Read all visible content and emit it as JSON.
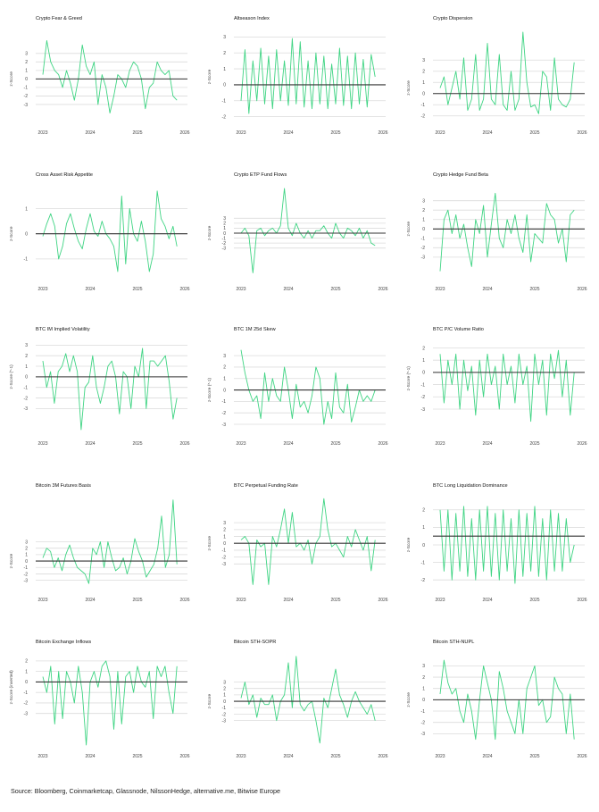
{
  "chart_data": {
    "type": "line",
    "x_start": "2023-01",
    "x_end": "2025-11",
    "xticks": [
      "2023",
      "2024",
      "2025",
      "2026"
    ],
    "line_color": "#3fd483",
    "zero_line_color": "#333333",
    "grid": true,
    "charts": [
      {
        "title": "Crypto Fear & Greed",
        "ylabel": "z-Score",
        "yticks": [
          -3,
          -2,
          -1,
          0,
          1,
          2,
          3
        ],
        "ylim": [
          -5,
          5.5
        ],
        "ref": 0,
        "values": [
          0.5,
          4.5,
          2,
          1,
          0.5,
          -1,
          1,
          -0.5,
          -2.5,
          0,
          4,
          1.5,
          0.5,
          2,
          -3,
          0.5,
          -1,
          -4,
          -2,
          0.5,
          0,
          -1,
          1,
          2,
          1.5,
          0,
          -3.5,
          -1,
          -0.5,
          2,
          1,
          0.5,
          1,
          -2,
          -2.5
        ]
      },
      {
        "title": "Altseason Index",
        "ylabel": "z-Score",
        "yticks": [
          -2,
          -1,
          0,
          1,
          2,
          3
        ],
        "ylim": [
          -2.3,
          3.3
        ],
        "ref": 0,
        "values": [
          -1,
          2.2,
          -1.8,
          1.5,
          -1,
          2.3,
          -1.2,
          1.8,
          -1.5,
          2.2,
          -1,
          1.5,
          -1.3,
          2.9,
          -1.2,
          2.7,
          -1.4,
          1.5,
          -1.5,
          2,
          -1.2,
          1.8,
          -1.5,
          1.3,
          -1.2,
          2.3,
          -1.3,
          1.8,
          -1.5,
          2,
          -1.2,
          1.6,
          -1.4,
          1.9,
          0.5
        ]
      },
      {
        "title": "Crypto Dispersion",
        "ylabel": "z-Score",
        "yticks": [
          -2,
          -1,
          0,
          1,
          2,
          3
        ],
        "ylim": [
          -2.5,
          5.5
        ],
        "ref": 0,
        "values": [
          0.5,
          1.5,
          -1,
          0.5,
          2,
          -0.5,
          3.2,
          -1.5,
          -0.5,
          3.5,
          -1.5,
          -0.5,
          4.5,
          -0.5,
          -1,
          3.5,
          -1,
          -1.5,
          2,
          -1.5,
          -0.5,
          5.5,
          1,
          -1.2,
          -1,
          -1.8,
          2,
          1.5,
          -1.5,
          3.2,
          -0.5,
          -1,
          -1.2,
          -0.5,
          2.8
        ]
      },
      {
        "title": "Cross Asset Risk Appetite",
        "ylabel": "z-Score",
        "yticks": [
          -1,
          0,
          1
        ],
        "ylim": [
          -1.75,
          1.8
        ],
        "ref": 0,
        "values": [
          -0.1,
          0.4,
          0.8,
          0.3,
          -1,
          -0.5,
          0.4,
          0.8,
          0.2,
          -0.3,
          -0.6,
          0.2,
          0.8,
          0.1,
          -0.1,
          0.5,
          0,
          -0.2,
          -0.5,
          -1.5,
          1.5,
          -1.2,
          1,
          0,
          -0.3,
          0.5,
          -0.3,
          -1.5,
          -0.8,
          1.7,
          0.6,
          0.3,
          -0.2,
          0.3,
          -0.5
        ]
      },
      {
        "title": "Crypto ETP Fund Flows",
        "ylabel": "z-Score",
        "yticks": [
          -3,
          -2,
          -1,
          0,
          1,
          2,
          3
        ],
        "ylim": [
          -9,
          9
        ],
        "ref": 0,
        "values": [
          0,
          1,
          -0.5,
          -8,
          0.5,
          1,
          -0.5,
          0.5,
          1,
          0,
          1.5,
          9,
          1,
          -0.5,
          2,
          0,
          -1,
          0.5,
          -1,
          0.5,
          0.5,
          1.5,
          0,
          -1,
          2,
          0,
          -1,
          1,
          0.5,
          -0.5,
          1,
          -1,
          0.5,
          -2,
          -2.5
        ]
      },
      {
        "title": "Crypto Hedge Fund Beta",
        "ylabel": "z-Score",
        "yticks": [
          -3,
          -2,
          -1,
          0,
          1,
          2,
          3
        ],
        "ylim": [
          -5.2,
          4.3
        ],
        "ref": 0,
        "values": [
          -4.5,
          1,
          2,
          -0.5,
          1.5,
          -1,
          0.5,
          -2,
          -4,
          1,
          -0.5,
          2.5,
          -3,
          0.5,
          3.8,
          -1,
          -2,
          1,
          -0.5,
          1.5,
          -1,
          -2.5,
          1.5,
          -3.5,
          -0.5,
          -1,
          -1.5,
          2.7,
          1.5,
          1,
          -1.5,
          0,
          -3.5,
          1.5,
          2
        ]
      },
      {
        "title": "BTC IM Implied Volatility",
        "ylabel": "z-Score (*-1)",
        "yticks": [
          -3,
          -2,
          -1,
          0,
          1,
          2,
          3
        ],
        "ylim": [
          -5.25,
          3.2
        ],
        "ref": 0,
        "values": [
          1.5,
          -1,
          0.5,
          -2.5,
          0.5,
          1,
          2.2,
          0.5,
          2,
          0.5,
          -5,
          -1,
          -0.5,
          2,
          -1,
          -2.5,
          -1,
          1,
          1.5,
          0,
          -3.5,
          0.5,
          0,
          -3,
          1,
          0,
          2.7,
          -3,
          1.5,
          1.5,
          1,
          1.5,
          2,
          -0.5,
          -4,
          -2
        ]
      },
      {
        "title": "BTC 1M 25d Skew",
        "ylabel": "z-Score (*-1)",
        "yticks": [
          -3,
          -2,
          -1,
          0,
          1,
          2,
          3
        ],
        "ylim": [
          -3.7,
          4.1
        ],
        "ref": 0,
        "values": [
          3.5,
          1.5,
          0,
          -1,
          -0.5,
          -2.5,
          1.5,
          -1,
          1,
          -0.5,
          -1,
          2,
          0,
          -2.5,
          0.5,
          -1.5,
          -1,
          -2,
          -0.5,
          2,
          1,
          -3,
          -1,
          -2.5,
          1.5,
          -1.5,
          -2,
          0.5,
          -2.8,
          -1.5,
          0,
          -1,
          -0.5,
          -1,
          0
        ]
      },
      {
        "title": "BTC P/C Volume Ratio",
        "ylabel": "z-Score (*-1)",
        "yticks": [
          -3,
          -2,
          -1,
          0,
          1,
          2
        ],
        "ylim": [
          -4.9,
          2.4
        ],
        "ref": 0,
        "values": [
          1.5,
          -2.5,
          1,
          -1,
          1.5,
          -3,
          1,
          -1.5,
          0.5,
          -3.5,
          1,
          -2,
          1.5,
          -1,
          0.5,
          -3,
          1.5,
          -1,
          0.5,
          -2.5,
          1.5,
          -1,
          0.5,
          -4,
          1.5,
          -1,
          1,
          -3.5,
          1.5,
          -0.5,
          1.8,
          -2,
          1,
          -3.5,
          0
        ]
      },
      {
        "title": "Bitcoin 3M Futures Basis",
        "ylabel": "z-Score",
        "yticks": [
          -3,
          -2,
          -1,
          0,
          1,
          2,
          3
        ],
        "ylim": [
          -4.3,
          9.6
        ],
        "ref": 0,
        "values": [
          0.5,
          2,
          1.5,
          -1,
          0.5,
          -1.5,
          1,
          2.5,
          0.5,
          -1,
          -1.5,
          -2,
          -3.5,
          2,
          1,
          3,
          -1,
          3,
          0.5,
          -1.5,
          -1,
          0.5,
          -2,
          0,
          3.5,
          1.5,
          0,
          -2.5,
          -1.5,
          -0.5,
          2,
          7,
          -1,
          1,
          9.5,
          -0.5
        ]
      },
      {
        "title": "BTC Perpetual Funding Rate",
        "ylabel": "z-Score",
        "yticks": [
          -3,
          -2,
          -1,
          0,
          1,
          2,
          3
        ],
        "ylim": [
          -6.6,
          6.4
        ],
        "ref": 0,
        "values": [
          0.5,
          1,
          0,
          -6,
          0.5,
          -0.5,
          0,
          -6,
          1,
          -0.5,
          2,
          5,
          0,
          4.5,
          -0.5,
          0,
          -1,
          0.5,
          -3,
          0,
          1,
          6.5,
          2,
          -0.5,
          0,
          -1,
          -2,
          1,
          -0.5,
          2,
          0.5,
          -1,
          1,
          -4,
          0.5
        ]
      },
      {
        "title": "BTC Long Liquidation Dominance",
        "ylabel": "z-Score",
        "yticks": [
          -2,
          -1,
          0,
          1,
          2
        ],
        "ylim": [
          -2.5,
          2.6
        ],
        "ref": 0.5,
        "values": [
          2,
          -1.5,
          2,
          -2,
          1.8,
          -1.5,
          2.2,
          -1.8,
          1.5,
          -2,
          2,
          -1.5,
          2.2,
          -1.8,
          1.8,
          -2,
          2,
          -1.5,
          1.5,
          -2.2,
          2,
          -1.8,
          1.8,
          -1.5,
          2.2,
          -1.8,
          1.5,
          -2,
          2,
          -1.5,
          1.8,
          -1.5,
          1.5,
          -1,
          0
        ]
      },
      {
        "title": "Bitcoin Exchange Inflows",
        "ylabel": "z-Score (inverted)",
        "yticks": [
          -3,
          -2,
          -1,
          0,
          1,
          2
        ],
        "ylim": [
          -6,
          2.5
        ],
        "ref": 0,
        "values": [
          0.5,
          -1,
          1.5,
          -4,
          1,
          -3.5,
          1,
          0,
          -2,
          1.5,
          -1,
          -6,
          0,
          1,
          -0.5,
          1.5,
          2,
          0.5,
          -4.5,
          1,
          -4,
          0.5,
          1,
          -1,
          1.5,
          0,
          -0.5,
          1,
          -3.5,
          1.5,
          0.5,
          1.5,
          -1,
          -3,
          1.5
        ]
      },
      {
        "title": "Bitcoin STH-SOPR",
        "ylabel": "z-Score",
        "yticks": [
          -3,
          -2,
          -1,
          0,
          1,
          2,
          3
        ],
        "ylim": [
          -6.8,
          7.1
        ],
        "ref": 0,
        "values": [
          0.5,
          3,
          -0.5,
          1,
          -2.5,
          0.5,
          -0.5,
          -0.5,
          1,
          -3,
          0,
          1,
          6,
          -1,
          7,
          -0.5,
          -1.5,
          -0.5,
          0,
          -3,
          -6.5,
          0.5,
          -1,
          2,
          5,
          1,
          -0.5,
          -2.5,
          0,
          1.5,
          0,
          -1,
          -2,
          -0.5,
          -3
        ]
      },
      {
        "title": "Bitcoin STH-NUPL",
        "ylabel": "z-Score",
        "yticks": [
          -3,
          -2,
          -1,
          0,
          1,
          2,
          3
        ],
        "ylim": [
          -4,
          3.9
        ],
        "ref": 0,
        "values": [
          0.5,
          3.5,
          1.5,
          0.5,
          1,
          -1,
          -2,
          0.5,
          -1,
          -3.5,
          0,
          3,
          1.5,
          0,
          -3.5,
          2.5,
          1,
          -1,
          -2,
          -3,
          0,
          -3,
          1,
          2,
          3,
          -0.5,
          0,
          -2,
          -1.5,
          2,
          1,
          0.5,
          -3,
          0.5,
          -3.5
        ]
      }
    ]
  },
  "footer": {
    "source": "Source: Bloomberg, Coinmarketcap, Glassnode, NilssonHedge, alternative.me, Bitwise Europe"
  }
}
